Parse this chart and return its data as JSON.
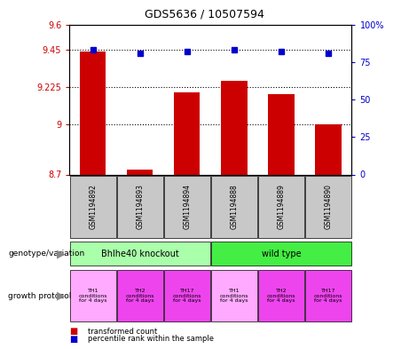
{
  "title": "GDS5636 / 10507594",
  "samples": [
    "GSM1194892",
    "GSM1194893",
    "GSM1194894",
    "GSM1194888",
    "GSM1194889",
    "GSM1194890"
  ],
  "bar_values": [
    9.44,
    8.73,
    9.19,
    9.26,
    9.18,
    9.0
  ],
  "percentile_values": [
    83,
    81,
    82,
    83,
    82,
    81
  ],
  "y_min": 8.7,
  "y_max": 9.6,
  "y_ticks": [
    8.7,
    9.0,
    9.225,
    9.45,
    9.6
  ],
  "y_tick_labels": [
    "8.7",
    "9",
    "9.225",
    "9.45",
    "9.6"
  ],
  "right_y_ticks": [
    0,
    25,
    50,
    75,
    100
  ],
  "right_y_tick_labels": [
    "0",
    "25",
    "50",
    "75",
    "100%"
  ],
  "bar_color": "#cc0000",
  "dot_color": "#0000cc",
  "genotype_groups": [
    {
      "label": "Bhlhe40 knockout",
      "start": 0,
      "end": 3,
      "color": "#aaffaa"
    },
    {
      "label": "wild type",
      "start": 3,
      "end": 6,
      "color": "#44ee44"
    }
  ],
  "prot_colors": [
    "#ffaaff",
    "#ee44ee",
    "#ee44ee",
    "#ffaaff",
    "#ee44ee",
    "#ee44ee"
  ],
  "prot_labels": [
    "TH1\nconditions\nfor 4 days",
    "TH2\nconditions\nfor 4 days",
    "TH17\nconditions\nfor 4 days",
    "TH1\nconditions\nfor 4 days",
    "TH2\nconditions\nfor 4 days",
    "TH17\nconditions\nfor 4 days"
  ],
  "sample_bg_color": "#c8c8c8",
  "left_label_color": "#cc0000",
  "right_label_color": "#0000cc",
  "hline_ticks": [
    9.0,
    9.225,
    9.45
  ]
}
